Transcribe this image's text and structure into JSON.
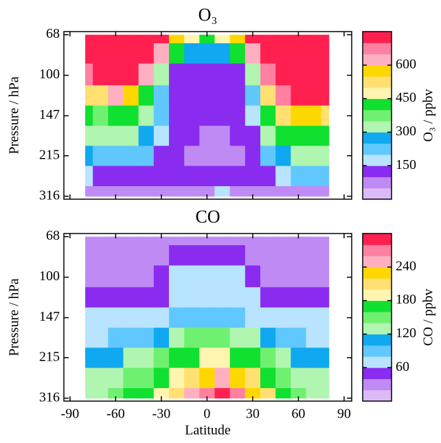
{
  "chart_data": [
    {
      "type": "contour",
      "title": "O₃",
      "ylabel": "Pressure / hPa",
      "show_xticklabels": false,
      "x": [
        -80,
        -70,
        -60,
        -50,
        -40,
        -30,
        -20,
        -10,
        0,
        10,
        20,
        30,
        40,
        50,
        60,
        70,
        80
      ],
      "y": [
        68,
        80,
        100,
        121,
        147,
        178,
        215,
        261,
        316
      ],
      "z": [
        [
          760,
          760,
          760,
          760,
          760,
          750,
          560,
          450,
          400,
          450,
          560,
          750,
          760,
          760,
          760,
          760,
          760
        ],
        [
          760,
          760,
          760,
          760,
          760,
          600,
          420,
          280,
          250,
          280,
          400,
          600,
          760,
          760,
          760,
          760,
          760
        ],
        [
          680,
          700,
          760,
          700,
          600,
          300,
          120,
          110,
          110,
          110,
          120,
          300,
          650,
          760,
          760,
          760,
          760
        ],
        [
          540,
          500,
          620,
          560,
          420,
          240,
          110,
          100,
          100,
          100,
          110,
          200,
          500,
          650,
          700,
          700,
          700
        ],
        [
          420,
          380,
          420,
          440,
          340,
          200,
          110,
          100,
          100,
          100,
          110,
          150,
          400,
          520,
          560,
          560,
          540
        ],
        [
          320,
          300,
          300,
          340,
          260,
          160,
          110,
          100,
          95,
          95,
          110,
          120,
          300,
          400,
          430,
          420,
          420
        ],
        [
          250,
          220,
          200,
          240,
          200,
          130,
          110,
          95,
          80,
          75,
          95,
          110,
          200,
          260,
          300,
          320,
          310
        ],
        [
          150,
          140,
          130,
          140,
          130,
          120,
          110,
          105,
          100,
          105,
          110,
          100,
          120,
          160,
          200,
          220,
          200
        ],
        [
          80,
          70,
          60,
          60,
          60,
          60,
          60,
          60,
          90,
          170,
          60,
          60,
          60,
          60,
          60,
          60,
          60
        ]
      ],
      "xlim": [
        -94,
        95
      ],
      "xticks": [
        -90,
        -60,
        -30,
        0,
        30,
        60,
        90
      ],
      "ylim": [
        325,
        66
      ],
      "yticks": [
        68,
        100,
        147,
        215,
        316
      ],
      "log_y": true,
      "colorbar": {
        "label": "O₃ / ppbv",
        "levels": [
          0,
          50,
          100,
          150,
          200,
          250,
          300,
          350,
          400,
          450,
          500,
          550,
          600,
          650,
          700,
          750
        ],
        "colors": [
          "#dcbaf7",
          "#c08af5",
          "#8a2cf0",
          "#b8e4ff",
          "#60c8ff",
          "#10a8f0",
          "#b0f5b0",
          "#70f070",
          "#10e030",
          "#fff5b0",
          "#ffe070",
          "#ffd700",
          "#ffb0c0",
          "#ff80a0",
          "#ff2050"
        ],
        "ticks": [
          150,
          300,
          450,
          600
        ]
      }
    },
    {
      "type": "contour",
      "title": "CO",
      "ylabel": "Pressure / hPa",
      "xlabel": "Latitude",
      "show_xticklabels": true,
      "x": [
        -80,
        -70,
        -60,
        -50,
        -40,
        -30,
        -20,
        -10,
        0,
        10,
        20,
        30,
        40,
        50,
        60,
        70,
        80
      ],
      "y": [
        68,
        80,
        100,
        121,
        147,
        178,
        215,
        261,
        316
      ],
      "z": [
        [
          30,
          30,
          30,
          30,
          30,
          30,
          30,
          30,
          30,
          30,
          30,
          30,
          30,
          30,
          30,
          30,
          30
        ],
        [
          30,
          30,
          30,
          30,
          30,
          30,
          45,
          50,
          50,
          50,
          45,
          30,
          30,
          30,
          30,
          30,
          30
        ],
        [
          30,
          30,
          30,
          30,
          30,
          45,
          70,
          75,
          75,
          75,
          70,
          50,
          35,
          30,
          30,
          30,
          30
        ],
        [
          45,
          45,
          45,
          45,
          45,
          55,
          75,
          75,
          75,
          75,
          75,
          65,
          50,
          45,
          45,
          45,
          45
        ],
        [
          62,
          62,
          60,
          60,
          60,
          65,
          80,
          85,
          85,
          85,
          80,
          75,
          65,
          60,
          60,
          60,
          60
        ],
        [
          75,
          75,
          80,
          85,
          95,
          110,
          130,
          140,
          145,
          140,
          135,
          120,
          100,
          85,
          80,
          75,
          75
        ],
        [
          110,
          110,
          110,
          120,
          135,
          150,
          165,
          175,
          185,
          185,
          175,
          160,
          140,
          125,
          110,
          105,
          105
        ],
        [
          120,
          125,
          130,
          140,
          155,
          170,
          185,
          200,
          230,
          250,
          230,
          200,
          175,
          150,
          135,
          130,
          125
        ],
        [
          130,
          135,
          145,
          160,
          175,
          190,
          210,
          240,
          270,
          290,
          270,
          230,
          200,
          170,
          145,
          135,
          130
        ]
      ],
      "xlim": [
        -94,
        95
      ],
      "xticks": [
        -90,
        -60,
        -30,
        0,
        30,
        60,
        90
      ],
      "ylim": [
        325,
        66
      ],
      "yticks": [
        68,
        100,
        147,
        215,
        316
      ],
      "log_y": true,
      "colorbar": {
        "label": "CO / ppbv",
        "levels": [
          0,
          20,
          40,
          60,
          80,
          100,
          120,
          140,
          160,
          180,
          200,
          220,
          240,
          260,
          280,
          300
        ],
        "colors": [
          "#dcbaf7",
          "#c08af5",
          "#8a2cf0",
          "#b8e4ff",
          "#60c8ff",
          "#10a8f0",
          "#b0f5b0",
          "#70f070",
          "#10e030",
          "#fff5b0",
          "#ffe070",
          "#ffd700",
          "#ffb0c0",
          "#ff80a0",
          "#ff2050"
        ],
        "ticks": [
          60,
          120,
          180,
          240
        ]
      }
    }
  ]
}
